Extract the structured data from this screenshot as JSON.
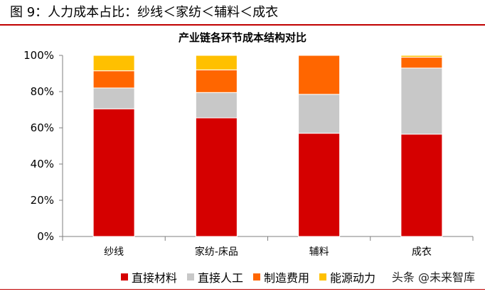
{
  "figure": {
    "caption": "图 9：人力成本占比：纱线＜家纺＜辅料＜成衣",
    "watermark": "头条 @未来智库"
  },
  "chart_data": {
    "type": "bar",
    "stacked": true,
    "title": "产业链各环节成本结构对比",
    "xlabel": "",
    "ylabel": "",
    "ylim": [
      0,
      100
    ],
    "yticks": [
      "0%",
      "20%",
      "40%",
      "60%",
      "80%",
      "100%"
    ],
    "categories": [
      "纱线",
      "家纺-床品",
      "辅料",
      "成衣"
    ],
    "series": [
      {
        "name": "直接材料",
        "color": "#d50000",
        "values": [
          70.5,
          65.5,
          57,
          56.5
        ]
      },
      {
        "name": "直接人工",
        "color": "#c8c8c8",
        "values": [
          11.5,
          14,
          21.5,
          36.5
        ]
      },
      {
        "name": "制造费用",
        "color": "#ff6600",
        "values": [
          9.5,
          12.5,
          21.5,
          6
        ]
      },
      {
        "name": "能源动力",
        "color": "#ffc000",
        "values": [
          8.5,
          8,
          0,
          1
        ]
      }
    ],
    "grid": false,
    "legend_position": "bottom"
  }
}
